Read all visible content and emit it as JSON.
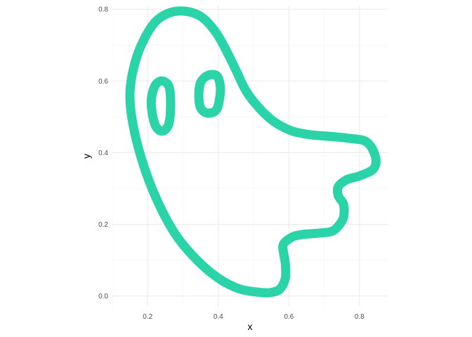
{
  "chart_data": {
    "type": "line",
    "xlabel": "x",
    "ylabel": "y",
    "xlim": [
      0.1,
      0.88
    ],
    "ylim": [
      -0.03,
      0.81
    ],
    "x_ticks": [
      0.2,
      0.4,
      0.6,
      0.8
    ],
    "y_ticks": [
      0.0,
      0.2,
      0.4,
      0.6,
      0.8
    ],
    "x_tick_labels": [
      "0.2",
      "0.4",
      "0.6",
      "0.8"
    ],
    "y_tick_labels": [
      "0.0",
      "0.2",
      "0.4",
      "0.6",
      "0.8"
    ],
    "x_minor_ticks": [
      0.1,
      0.3,
      0.5,
      0.7
    ],
    "y_minor_ticks": [
      0.1,
      0.3,
      0.5,
      0.7
    ],
    "grid": true,
    "theme": "minimal",
    "line_color": "#2AD4A8",
    "series": [
      {
        "points": [
          [
            0.52,
            0.01
          ],
          [
            0.46,
            0.02
          ],
          [
            0.4,
            0.05
          ],
          [
            0.34,
            0.1
          ],
          [
            0.28,
            0.17
          ],
          [
            0.23,
            0.26
          ],
          [
            0.19,
            0.36
          ],
          [
            0.16,
            0.47
          ],
          [
            0.15,
            0.57
          ],
          [
            0.17,
            0.67
          ],
          [
            0.21,
            0.75
          ],
          [
            0.25,
            0.785
          ],
          [
            0.3,
            0.795
          ],
          [
            0.35,
            0.78
          ],
          [
            0.39,
            0.74
          ],
          [
            0.42,
            0.69
          ],
          [
            0.45,
            0.63
          ],
          [
            0.48,
            0.57
          ],
          [
            0.52,
            0.52
          ],
          [
            0.56,
            0.485
          ],
          [
            0.61,
            0.46
          ],
          [
            0.66,
            0.45
          ],
          [
            0.72,
            0.445
          ],
          [
            0.77,
            0.44
          ],
          [
            0.82,
            0.43
          ],
          [
            0.845,
            0.39
          ],
          [
            0.84,
            0.355
          ],
          [
            0.8,
            0.335
          ],
          [
            0.765,
            0.325
          ],
          [
            0.74,
            0.305
          ],
          [
            0.74,
            0.28
          ],
          [
            0.755,
            0.255
          ],
          [
            0.755,
            0.22
          ],
          [
            0.74,
            0.195
          ],
          [
            0.72,
            0.18
          ],
          [
            0.68,
            0.175
          ],
          [
            0.64,
            0.172
          ],
          [
            0.61,
            0.165
          ],
          [
            0.585,
            0.145
          ],
          [
            0.585,
            0.12
          ],
          [
            0.59,
            0.09
          ],
          [
            0.59,
            0.05
          ],
          [
            0.575,
            0.02
          ],
          [
            0.55,
            0.01
          ],
          [
            0.52,
            0.01
          ]
        ]
      },
      {
        "points": [
          [
            0.24,
            0.6
          ],
          [
            0.22,
            0.585
          ],
          [
            0.21,
            0.54
          ],
          [
            0.22,
            0.48
          ],
          [
            0.24,
            0.46
          ],
          [
            0.26,
            0.48
          ],
          [
            0.265,
            0.54
          ],
          [
            0.26,
            0.585
          ],
          [
            0.24,
            0.6
          ]
        ]
      },
      {
        "points": [
          [
            0.37,
            0.51
          ],
          [
            0.35,
            0.525
          ],
          [
            0.345,
            0.56
          ],
          [
            0.35,
            0.595
          ],
          [
            0.37,
            0.615
          ],
          [
            0.395,
            0.615
          ],
          [
            0.405,
            0.59
          ],
          [
            0.405,
            0.56
          ],
          [
            0.395,
            0.52
          ],
          [
            0.37,
            0.51
          ]
        ]
      }
    ]
  }
}
